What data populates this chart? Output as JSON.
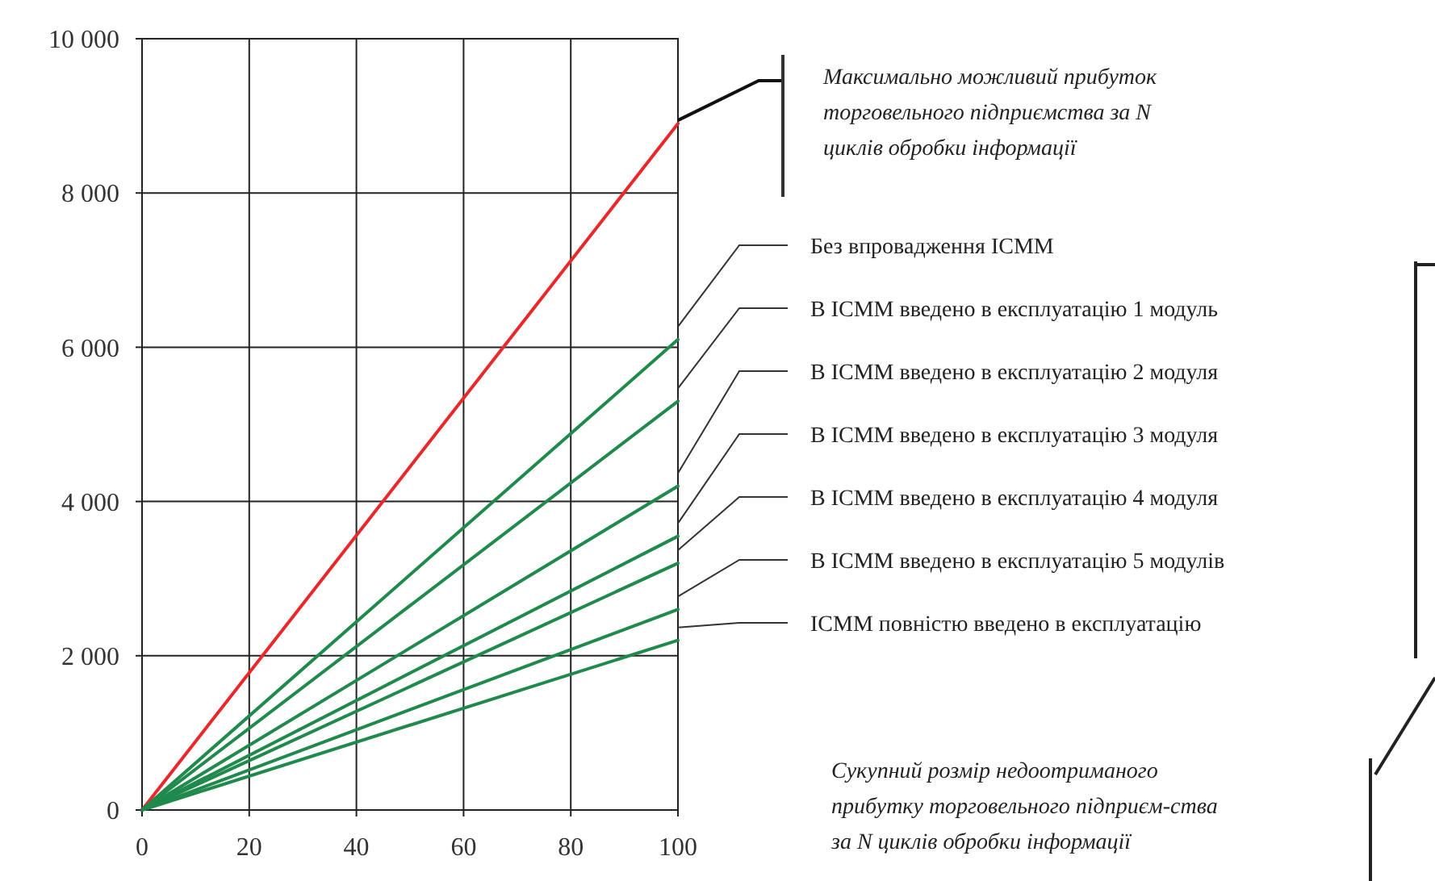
{
  "chart_data": {
    "type": "line",
    "x": [
      0,
      100
    ],
    "xlim": [
      0,
      100
    ],
    "xticks": [
      0,
      20,
      40,
      60,
      80,
      100
    ],
    "ylim": [
      0,
      10000
    ],
    "yticks": [
      0,
      {
        "value": 2000,
        "label": "2 000"
      },
      {
        "value": 4000,
        "label": "4 000"
      },
      {
        "value": 6000,
        "label": "6 000"
      },
      {
        "value": 8000,
        "label": "8 000"
      },
      {
        "value": 10000,
        "label": "10 000"
      }
    ],
    "grid": true,
    "marker": "none",
    "line_style": "solid",
    "series": [
      {
        "name": "Максимально можливий прибуток торговельного підприємства за N циклів обробки інформації",
        "color": "#e8282a",
        "values": [
          0,
          8900
        ]
      },
      {
        "name": "Без впровадження  ІСММ",
        "color": "#1f8a4c",
        "values": [
          0,
          6100
        ]
      },
      {
        "name": "В ІСММ введено в експлуатацію 1 модуль",
        "color": "#1f8a4c",
        "values": [
          0,
          5300
        ]
      },
      {
        "name": "В ІСММ введено в експлуатацію 2 модуля",
        "color": "#1f8a4c",
        "values": [
          0,
          4200
        ]
      },
      {
        "name": "В ІСММ введено в експлуатацію 3 модуля",
        "color": "#1f8a4c",
        "values": [
          0,
          3550
        ]
      },
      {
        "name": "В ІСММ введено в експлуатацію 4 модуля",
        "color": "#1f8a4c",
        "values": [
          0,
          3200
        ]
      },
      {
        "name": "В ІСММ введено в експлуатацію 5 модулів",
        "color": "#1f8a4c",
        "values": [
          0,
          2600
        ]
      },
      {
        "name": "ІСММ повністю введено в експлуатацію",
        "color": "#1f8a4c",
        "values": [
          0,
          2200
        ]
      }
    ],
    "annotations": [
      "Сукупний розмір недоотриманого прибутку  торговельного підприєм-ства за N циклів обробки інформації"
    ]
  }
}
